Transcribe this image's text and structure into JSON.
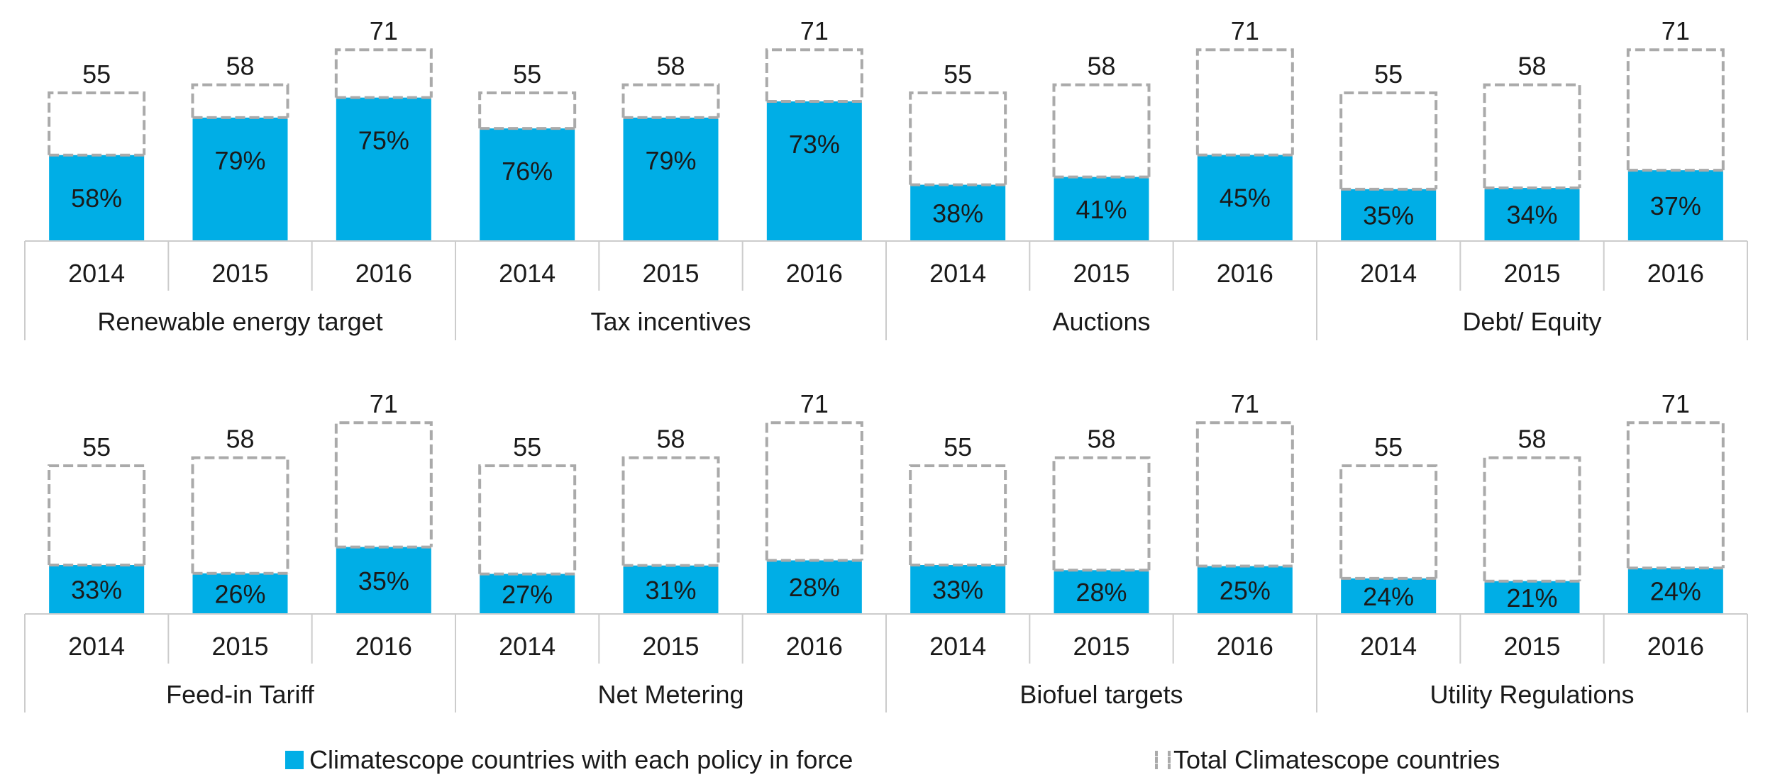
{
  "chart_data": {
    "type": "bar",
    "years": [
      "2014",
      "2015",
      "2016"
    ],
    "totals": [
      55,
      58,
      71
    ],
    "panels": [
      {
        "group": "Renewable energy target",
        "percent_labels": [
          "58%",
          "79%",
          "75%"
        ],
        "percent": [
          58,
          79,
          75
        ]
      },
      {
        "group": "Tax incentives",
        "percent_labels": [
          "76%",
          "79%",
          "73%"
        ],
        "percent": [
          76,
          79,
          73
        ]
      },
      {
        "group": "Auctions",
        "percent_labels": [
          "38%",
          "41%",
          "45%"
        ],
        "percent": [
          38,
          41,
          45
        ]
      },
      {
        "group": "Debt/ Equity",
        "percent_labels": [
          "35%",
          "34%",
          "37%"
        ],
        "percent": [
          35,
          34,
          37
        ]
      },
      {
        "group": "Feed-in Tariff",
        "percent_labels": [
          "33%",
          "26%",
          "35%"
        ],
        "percent": [
          33,
          26,
          35
        ]
      },
      {
        "group": "Net Metering",
        "percent_labels": [
          "27%",
          "31%",
          "28%"
        ],
        "percent": [
          27,
          31,
          28
        ]
      },
      {
        "group": "Biofuel targets",
        "percent_labels": [
          "33%",
          "28%",
          "25%"
        ],
        "percent": [
          33,
          28,
          25
        ]
      },
      {
        "group": "Utility Regulations",
        "percent_labels": [
          "24%",
          "21%",
          "24%"
        ],
        "percent": [
          24,
          21,
          24
        ]
      }
    ],
    "legend": {
      "policy_in_force": "Climatescope countries with each policy in force",
      "total": "Total Climatescope countries",
      "placement": "bottom"
    },
    "colors": {
      "policy_bar": "#00aee6",
      "total_outline": "#aaaaaa",
      "axis": "#cccccc"
    }
  }
}
